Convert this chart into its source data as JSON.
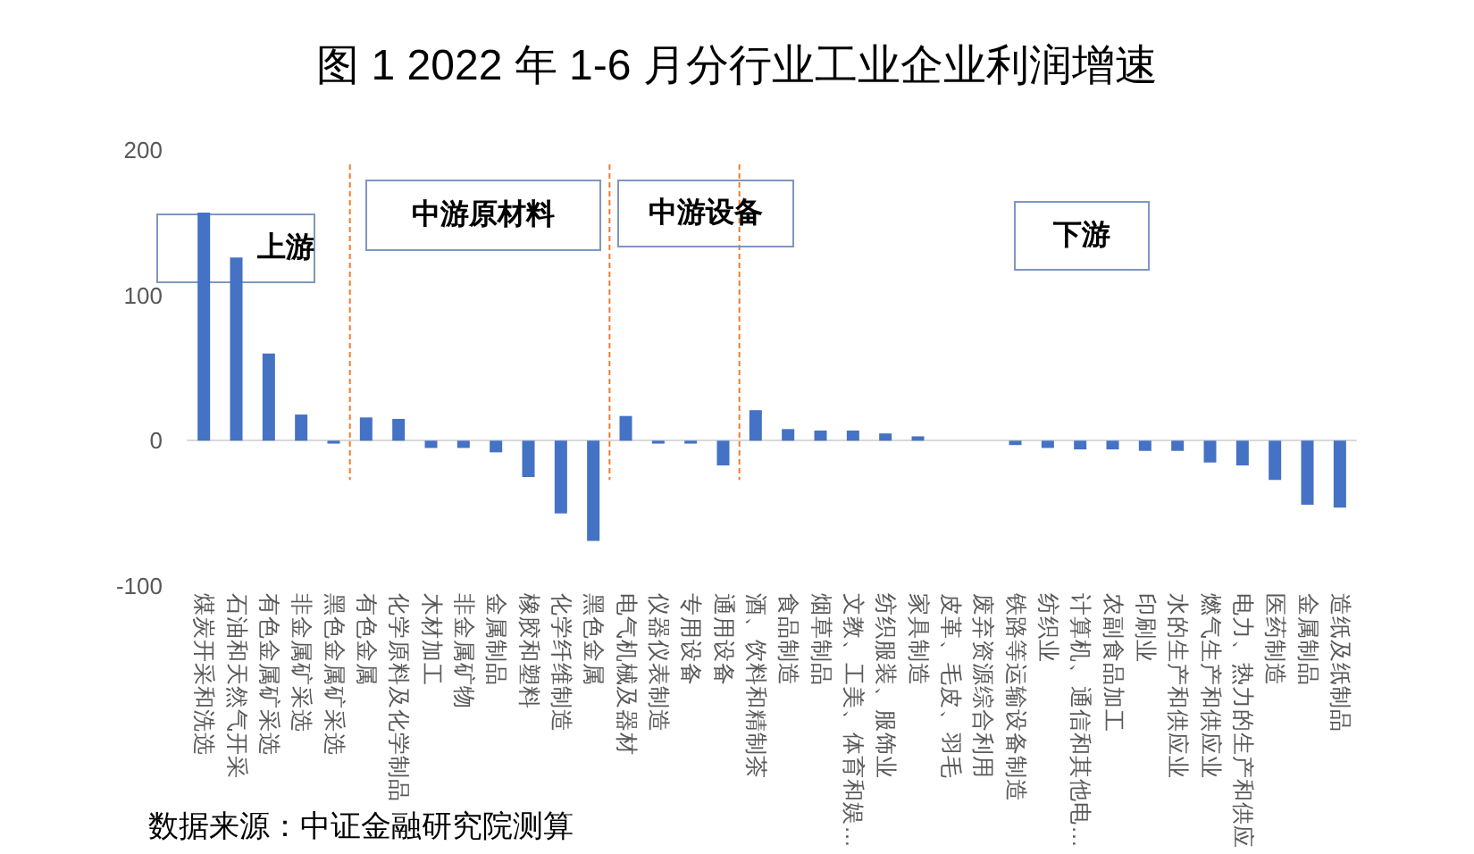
{
  "chart_data": {
    "type": "bar",
    "title": "图 1 2022 年 1-6 月分行业工业企业利润增速",
    "categories": [
      "煤炭开采和洗选",
      "石油和天然气开采",
      "有色金属矿采选",
      "非金属矿采选",
      "黑色金属矿采选",
      "有色金属",
      "化学原料及化学制品",
      "木材加工",
      "非金属矿物",
      "金属制品",
      "橡胶和塑料",
      "化学纤维制造",
      "黑色金属",
      "电气机械及器材",
      "仪器仪表制造",
      "专用设备",
      "通用设备",
      "酒、饮料和精制茶",
      "食品制造",
      "烟草制品",
      "文教、工美、体育和娱…",
      "纺织服装、服饰业",
      "家具制造",
      "皮革、毛皮、羽毛",
      "废弃资源综合利用",
      "铁路等运输设备制造",
      "纺织业",
      "计算机、通信和其他电…",
      "农副食品加工",
      "印刷业",
      "水的生产和供应业",
      "燃气生产和供应业",
      "电力、热力的生产和供应",
      "医药制造",
      "金属制品",
      "造纸及纸制品"
    ],
    "values": [
      157,
      126,
      60,
      18,
      -2,
      16,
      15,
      -5,
      -5,
      -8,
      -25,
      -50,
      -69,
      17,
      -2,
      -2,
      -17,
      21,
      8,
      7,
      7,
      5,
      3,
      0,
      0,
      -3,
      -5,
      -6,
      -6,
      -7,
      -7,
      -15,
      -17,
      -27,
      -44,
      -46
    ],
    "color": "#4472c4",
    "ylim": [
      -100,
      200
    ],
    "yticks": [
      -100,
      0,
      100,
      200
    ],
    "grid": false,
    "annotations": [
      "上游",
      "中游原材料",
      "中游设备",
      "下游",
      "数据来源：中证金融研究院测算"
    ]
  }
}
